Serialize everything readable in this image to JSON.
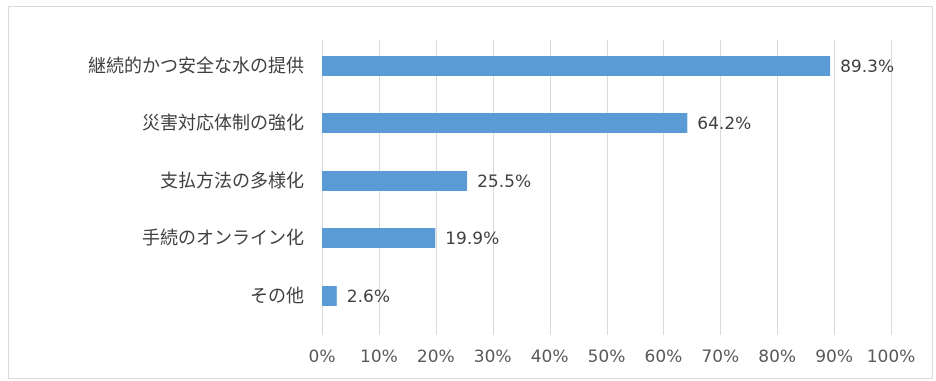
{
  "chart_data": {
    "type": "bar",
    "orientation": "horizontal",
    "title": "",
    "xlabel": "",
    "ylabel": "",
    "categories": [
      "継続的かつ安全な水の提供",
      "災害対応体制の強化",
      "支払方法の多様化",
      "手続のオンライン化",
      "その他"
    ],
    "values": [
      89.3,
      64.2,
      25.5,
      19.9,
      2.6
    ],
    "value_labels": [
      "89.3%",
      "64.2%",
      "25.5%",
      "19.9%",
      "2.6%"
    ],
    "xlim": [
      0,
      100
    ],
    "x_ticks": [
      "0%",
      "10%",
      "20%",
      "30%",
      "40%",
      "50%",
      "60%",
      "70%",
      "80%",
      "90%",
      "100%"
    ],
    "grid": true,
    "legend": "none",
    "bar_color": "#5b9bd5",
    "grid_color": "#d9d9d9",
    "text_color": "#404040"
  }
}
